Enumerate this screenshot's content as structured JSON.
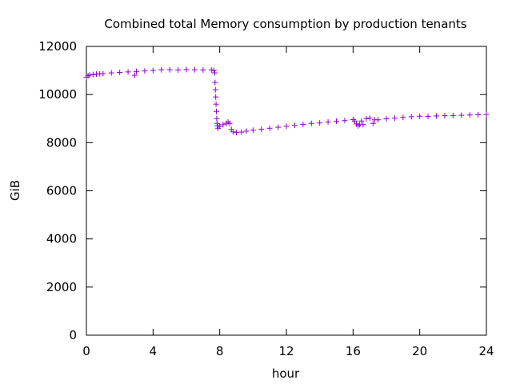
{
  "chart_data": {
    "type": "scatter",
    "title": "Combined total Memory consumption by production tenants",
    "xlabel": "hour",
    "ylabel": "GiB",
    "xlim": [
      0,
      24
    ],
    "ylim": [
      0,
      12000
    ],
    "xticks": [
      "0",
      "4",
      "8",
      "12",
      "16",
      "20",
      "24"
    ],
    "yticks": [
      "0",
      "2000",
      "4000",
      "6000",
      "8000",
      "10000",
      "12000"
    ],
    "grid": false,
    "legend": "none",
    "marker": "+",
    "colors": {
      "series": "#9400d3",
      "axis": "#000000",
      "background": "#ffffff"
    },
    "series": [
      {
        "points": [
          [
            0.0,
            10720
          ],
          [
            0.1,
            10780
          ],
          [
            0.2,
            10810
          ],
          [
            0.4,
            10830
          ],
          [
            0.6,
            10850
          ],
          [
            0.8,
            10860
          ],
          [
            1.0,
            10870
          ],
          [
            1.5,
            10900
          ],
          [
            2.0,
            10920
          ],
          [
            2.5,
            10940
          ],
          [
            2.9,
            10800
          ],
          [
            3.0,
            10960
          ],
          [
            3.5,
            10980
          ],
          [
            4.0,
            11000
          ],
          [
            4.5,
            11030
          ],
          [
            5.0,
            11030
          ],
          [
            5.5,
            11020
          ],
          [
            6.0,
            11040
          ],
          [
            6.5,
            11030
          ],
          [
            7.0,
            11020
          ],
          [
            7.5,
            11020
          ],
          [
            7.65,
            11000
          ],
          [
            7.7,
            10900
          ],
          [
            7.72,
            10500
          ],
          [
            7.74,
            10200
          ],
          [
            7.76,
            9900
          ],
          [
            7.78,
            9600
          ],
          [
            7.8,
            9300
          ],
          [
            7.82,
            9000
          ],
          [
            7.84,
            8800
          ],
          [
            7.86,
            8700
          ],
          [
            7.9,
            8600
          ],
          [
            8.0,
            8680
          ],
          [
            8.2,
            8750
          ],
          [
            8.4,
            8800
          ],
          [
            8.5,
            8860
          ],
          [
            8.6,
            8800
          ],
          [
            8.7,
            8550
          ],
          [
            8.8,
            8450
          ],
          [
            9.0,
            8420
          ],
          [
            9.3,
            8440
          ],
          [
            9.6,
            8480
          ],
          [
            10.0,
            8520
          ],
          [
            10.5,
            8560
          ],
          [
            11.0,
            8600
          ],
          [
            11.5,
            8640
          ],
          [
            12.0,
            8680
          ],
          [
            12.5,
            8720
          ],
          [
            13.0,
            8760
          ],
          [
            13.5,
            8800
          ],
          [
            14.0,
            8820
          ],
          [
            14.5,
            8860
          ],
          [
            15.0,
            8890
          ],
          [
            15.5,
            8920
          ],
          [
            16.0,
            8960
          ],
          [
            16.1,
            8900
          ],
          [
            16.2,
            8780
          ],
          [
            16.3,
            8700
          ],
          [
            16.4,
            8750
          ],
          [
            16.5,
            8900
          ],
          [
            16.6,
            8750
          ],
          [
            16.8,
            9000
          ],
          [
            17.0,
            9020
          ],
          [
            17.2,
            8800
          ],
          [
            17.3,
            8950
          ],
          [
            17.5,
            8950
          ],
          [
            18.0,
            8990
          ],
          [
            18.5,
            9020
          ],
          [
            19.0,
            9050
          ],
          [
            19.5,
            9080
          ],
          [
            20.0,
            9100
          ],
          [
            20.5,
            9090
          ],
          [
            21.0,
            9110
          ],
          [
            21.5,
            9120
          ],
          [
            22.0,
            9130
          ],
          [
            22.5,
            9140
          ],
          [
            23.0,
            9150
          ],
          [
            23.5,
            9160
          ],
          [
            24.0,
            9170
          ]
        ]
      }
    ]
  }
}
